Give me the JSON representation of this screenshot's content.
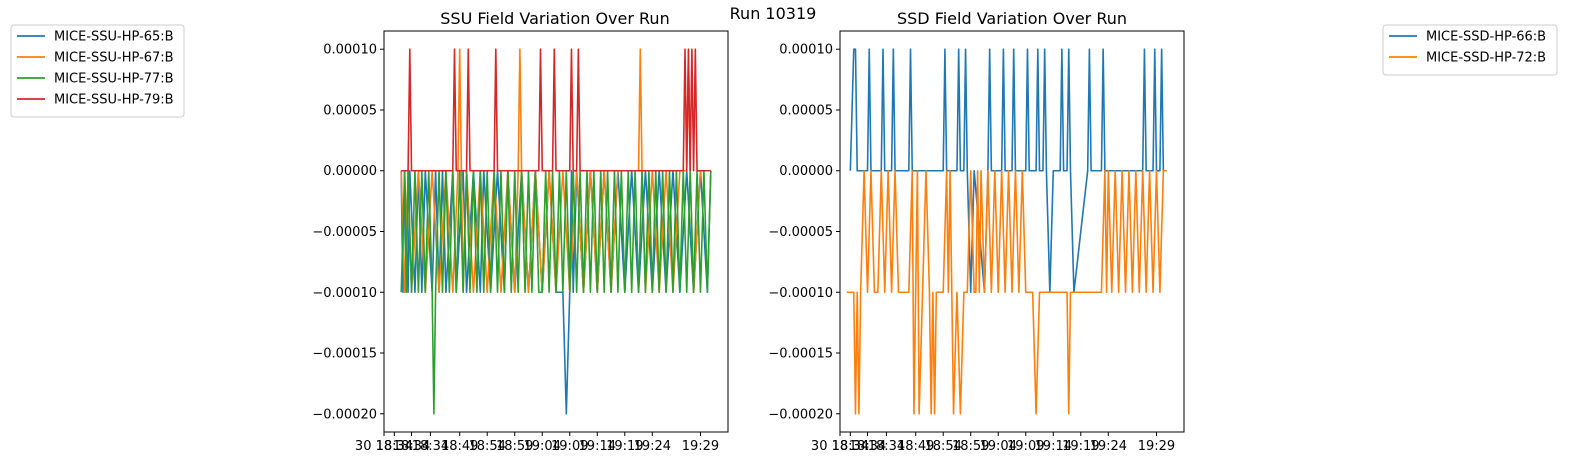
{
  "figure": {
    "suptitle": "Run 10319"
  },
  "chart_data": [
    {
      "type": "line",
      "title": "SSU Field Variation Over Run",
      "xlabel": "",
      "ylabel": "",
      "ylim": [
        -0.000215,
        0.000115
      ],
      "yticks": [
        0.0001,
        5e-05,
        0.0,
        -5e-05,
        -0.0001,
        -0.00015,
        -0.0002
      ],
      "ytick_labels": [
        "0.00010",
        "0.00005",
        "0.00000",
        "−0.00005",
        "−0.00010",
        "−0.00015",
        "−0.00020"
      ],
      "xlim": [
        0,
        1
      ],
      "xtick_labels": [
        "30 18:34",
        "18:34",
        "18:34",
        "18:34",
        "18:49",
        "18:54",
        "18:59",
        "19:04",
        "19:09",
        "19:14",
        "19:19",
        "19:24",
        "19:29"
      ],
      "xtick_positions": [
        0.0,
        0.03,
        0.08,
        0.135,
        0.22,
        0.3,
        0.38,
        0.46,
        0.54,
        0.62,
        0.7,
        0.78,
        0.92
      ],
      "legend": "outside-left",
      "series": [
        {
          "name": "MICE-SSU-HP-65:B",
          "color": "#1f77b4",
          "x": [
            0.05,
            0.055,
            0.06,
            0.07,
            0.075,
            0.09,
            0.1,
            0.11,
            0.12,
            0.14,
            0.15,
            0.16,
            0.17,
            0.18,
            0.2,
            0.21,
            0.23,
            0.24,
            0.26,
            0.28,
            0.29,
            0.31,
            0.33,
            0.35,
            0.36,
            0.38,
            0.4,
            0.42,
            0.44,
            0.46,
            0.48,
            0.5,
            0.52,
            0.53,
            0.54,
            0.545,
            0.55,
            0.56,
            0.58,
            0.6,
            0.62,
            0.64,
            0.66,
            0.68,
            0.7,
            0.72,
            0.74,
            0.76,
            0.78,
            0.8,
            0.82,
            0.84,
            0.86,
            0.88,
            0.9,
            0.92,
            0.94,
            0.95
          ],
          "y": [
            0,
            -0.0001,
            0,
            -0.0001,
            0,
            -0.0001,
            0,
            -0.0001,
            0,
            -0.0001,
            0,
            -0.0001,
            0,
            -0.0001,
            0,
            -0.0001,
            0,
            -0.0001,
            0,
            -0.0001,
            0,
            -0.0001,
            0,
            -0.0001,
            0,
            -0.0001,
            0,
            -0.0001,
            0,
            -0.0001,
            0,
            -0.0001,
            -0.0001,
            -0.0002,
            -0.0001,
            0,
            -0.0001,
            0,
            -0.0001,
            0,
            -0.0001,
            0,
            -0.0001,
            0,
            -0.0001,
            0,
            -0.0001,
            0,
            -0.0001,
            0,
            -0.0001,
            0,
            -0.0001,
            0,
            -0.0001,
            0,
            -0.0001,
            0
          ]
        },
        {
          "name": "MICE-SSU-HP-67:B",
          "color": "#ff7f0e",
          "x": [
            0.05,
            0.06,
            0.07,
            0.08,
            0.1,
            0.12,
            0.14,
            0.16,
            0.18,
            0.2,
            0.215,
            0.22,
            0.225,
            0.23,
            0.24,
            0.26,
            0.28,
            0.3,
            0.32,
            0.34,
            0.36,
            0.38,
            0.39,
            0.395,
            0.4,
            0.42,
            0.44,
            0.46,
            0.48,
            0.5,
            0.52,
            0.54,
            0.56,
            0.58,
            0.6,
            0.62,
            0.64,
            0.66,
            0.68,
            0.7,
            0.74,
            0.745,
            0.75,
            0.76,
            0.78,
            0.8,
            0.82,
            0.84,
            0.86,
            0.88,
            0.885,
            0.89,
            0.9,
            0.92,
            0.94
          ],
          "y": [
            0,
            -0.0001,
            0,
            -0.0001,
            0,
            -0.0001,
            0,
            -0.0001,
            0,
            -0.0001,
            0,
            0.0001,
            0,
            -0.0001,
            0,
            -0.0001,
            0,
            -0.0001,
            0,
            -0.0001,
            0,
            -0.0001,
            0,
            0.0001,
            0,
            -0.0001,
            0,
            -0.0001,
            0,
            -0.0001,
            0,
            -0.0001,
            0,
            -0.0001,
            0,
            -0.0001,
            0,
            -0.0001,
            0,
            0,
            0,
            0.0001,
            0,
            -0.0001,
            0,
            -0.0001,
            0,
            -0.0001,
            0,
            0,
            0.0001,
            0,
            -0.0001,
            0,
            0
          ]
        },
        {
          "name": "MICE-SSU-HP-77:B",
          "color": "#2ca02c",
          "x": [
            0.05,
            0.06,
            0.065,
            0.07,
            0.08,
            0.09,
            0.1,
            0.11,
            0.12,
            0.13,
            0.14,
            0.145,
            0.15,
            0.16,
            0.17,
            0.18,
            0.19,
            0.2,
            0.21,
            0.22,
            0.23,
            0.24,
            0.25,
            0.26,
            0.27,
            0.28,
            0.29,
            0.3,
            0.31,
            0.32,
            0.33,
            0.34,
            0.35,
            0.36,
            0.37,
            0.38,
            0.39,
            0.4,
            0.41,
            0.42,
            0.43,
            0.44,
            0.45,
            0.46,
            0.47,
            0.48,
            0.49,
            0.5,
            0.51,
            0.52,
            0.53,
            0.54,
            0.55,
            0.56,
            0.57,
            0.58,
            0.59,
            0.6,
            0.61,
            0.62,
            0.63,
            0.64,
            0.65,
            0.66,
            0.67,
            0.68,
            0.69,
            0.7,
            0.71,
            0.72,
            0.73,
            0.74,
            0.75,
            0.76,
            0.77,
            0.78,
            0.79,
            0.8,
            0.81,
            0.82,
            0.83,
            0.84,
            0.85,
            0.86,
            0.87,
            0.88,
            0.89,
            0.9,
            0.91,
            0.92,
            0.93,
            0.94,
            0.95
          ],
          "y": [
            -0.0001,
            0,
            -0.0001,
            0,
            -0.0001,
            0,
            -0.0001,
            0,
            -0.0001,
            0,
            -0.0001,
            -0.0002,
            -0.0001,
            0,
            -0.0001,
            0,
            -0.0001,
            0,
            -0.0001,
            0,
            -0.0001,
            0,
            -0.0001,
            0,
            -0.0001,
            0,
            -0.0001,
            0,
            -0.0001,
            0,
            -0.0001,
            0,
            -0.0001,
            0,
            -0.0001,
            0,
            -0.0001,
            0,
            -0.0001,
            0,
            -0.0001,
            0,
            -0.0001,
            -0.0001,
            0,
            -0.0001,
            0,
            -0.0001,
            0,
            -0.0001,
            0,
            -0.0001,
            0,
            -0.0001,
            0,
            -0.0001,
            0,
            -0.0001,
            0,
            -0.0001,
            0,
            -0.0001,
            0,
            -0.0001,
            0,
            -0.0001,
            0,
            -0.0001,
            0,
            -0.0001,
            0,
            -0.0001,
            0,
            -0.0001,
            0,
            -0.0001,
            0,
            -0.0001,
            0,
            -0.0001,
            0,
            -0.0001,
            0,
            -0.0001,
            0,
            -0.0001,
            0,
            -0.0001,
            0,
            -0.0001,
            0,
            -0.0001,
            0
          ]
        },
        {
          "name": "MICE-SSU-HP-79:B",
          "color": "#d62728",
          "x": [
            0.05,
            0.07,
            0.075,
            0.08,
            0.2,
            0.205,
            0.21,
            0.24,
            0.245,
            0.25,
            0.32,
            0.325,
            0.33,
            0.45,
            0.455,
            0.46,
            0.49,
            0.495,
            0.5,
            0.54,
            0.545,
            0.55,
            0.56,
            0.565,
            0.57,
            0.87,
            0.875,
            0.88,
            0.885,
            0.89,
            0.895,
            0.9,
            0.905,
            0.91,
            0.95
          ],
          "y": [
            0,
            0,
            0.0001,
            0,
            0,
            0.0001,
            0,
            0,
            0.0001,
            0,
            0,
            0.0001,
            0,
            0,
            0.0001,
            0,
            0,
            0.0001,
            0,
            0,
            0.0001,
            0,
            0,
            0.0001,
            0,
            0,
            0.0001,
            0,
            0.0001,
            0,
            0.0001,
            0,
            0.0001,
            0,
            0
          ]
        }
      ]
    },
    {
      "type": "line",
      "title": "SSD Field Variation Over Run",
      "xlabel": "",
      "ylabel": "",
      "ylim": [
        -0.000215,
        0.000115
      ],
      "yticks": [
        0.0001,
        5e-05,
        0.0,
        -5e-05,
        -0.0001,
        -0.00015,
        -0.0002
      ],
      "ytick_labels": [
        "0.00010",
        "0.00005",
        "0.00000",
        "−0.00005",
        "−0.00010",
        "−0.00015",
        "−0.00020"
      ],
      "xlim": [
        0,
        1
      ],
      "xtick_labels": [
        "30 18:34",
        "18:34",
        "18:34",
        "18:34",
        "18:49",
        "18:54",
        "18:59",
        "19:04",
        "19:09",
        "19:14",
        "19:19",
        "19:24",
        "19:29"
      ],
      "xtick_positions": [
        0.0,
        0.03,
        0.08,
        0.135,
        0.22,
        0.3,
        0.38,
        0.46,
        0.54,
        0.62,
        0.7,
        0.78,
        0.92
      ],
      "legend": "outside-right",
      "series": [
        {
          "name": "MICE-SSD-HP-66:B",
          "color": "#1f77b4",
          "x": [
            0.03,
            0.04,
            0.045,
            0.05,
            0.08,
            0.085,
            0.09,
            0.12,
            0.125,
            0.13,
            0.15,
            0.155,
            0.16,
            0.2,
            0.205,
            0.21,
            0.3,
            0.305,
            0.31,
            0.34,
            0.345,
            0.35,
            0.36,
            0.365,
            0.37,
            0.38,
            0.39,
            0.42,
            0.43,
            0.435,
            0.44,
            0.47,
            0.475,
            0.48,
            0.5,
            0.505,
            0.51,
            0.54,
            0.545,
            0.55,
            0.57,
            0.575,
            0.58,
            0.59,
            0.595,
            0.6,
            0.61,
            0.62,
            0.64,
            0.645,
            0.65,
            0.66,
            0.665,
            0.67,
            0.68,
            0.72,
            0.725,
            0.73,
            0.76,
            0.765,
            0.77,
            0.88,
            0.885,
            0.89,
            0.91,
            0.915,
            0.92,
            0.93,
            0.935,
            0.94,
            0.95
          ],
          "y": [
            0,
            0.0001,
            0.0001,
            0,
            0,
            0.0001,
            0,
            0,
            0.0001,
            0,
            0,
            0.0001,
            0,
            0,
            0.0001,
            0,
            0,
            0.0001,
            0,
            0,
            0.0001,
            0,
            0,
            0.0001,
            0,
            -0.0001,
            0,
            -0.0001,
            0,
            0.0001,
            0,
            0,
            0.0001,
            0,
            0,
            0.0001,
            0,
            0,
            0.0001,
            0,
            0,
            0.0001,
            0,
            0,
            0.0001,
            0,
            -0.0001,
            0,
            0,
            0.0001,
            0,
            0,
            0.0001,
            0,
            -0.0001,
            0,
            0.0001,
            0,
            0,
            0.0001,
            0,
            0,
            0.0001,
            0,
            0,
            0.0001,
            0,
            0,
            0.0001,
            0,
            0
          ]
        },
        {
          "name": "MICE-SSD-HP-72:B",
          "color": "#ff7f0e",
          "x": [
            0.02,
            0.04,
            0.045,
            0.05,
            0.055,
            0.06,
            0.07,
            0.08,
            0.09,
            0.1,
            0.11,
            0.12,
            0.13,
            0.14,
            0.15,
            0.16,
            0.17,
            0.2,
            0.21,
            0.215,
            0.22,
            0.225,
            0.23,
            0.24,
            0.25,
            0.26,
            0.265,
            0.27,
            0.275,
            0.28,
            0.29,
            0.3,
            0.31,
            0.315,
            0.32,
            0.33,
            0.34,
            0.35,
            0.36,
            0.37,
            0.38,
            0.39,
            0.395,
            0.4,
            0.405,
            0.41,
            0.42,
            0.43,
            0.44,
            0.45,
            0.46,
            0.47,
            0.48,
            0.49,
            0.5,
            0.51,
            0.52,
            0.53,
            0.54,
            0.55,
            0.56,
            0.57,
            0.58,
            0.59,
            0.6,
            0.61,
            0.62,
            0.63,
            0.64,
            0.65,
            0.66,
            0.665,
            0.67,
            0.68,
            0.69,
            0.7,
            0.71,
            0.72,
            0.73,
            0.74,
            0.75,
            0.76,
            0.77,
            0.775,
            0.78,
            0.79,
            0.8,
            0.81,
            0.82,
            0.83,
            0.84,
            0.85,
            0.86,
            0.87,
            0.88,
            0.89,
            0.9,
            0.91,
            0.92,
            0.93,
            0.94,
            0.95
          ],
          "y": [
            -0.0001,
            -0.0001,
            -0.0002,
            -0.0001,
            -0.0002,
            -0.0001,
            0,
            -0.0001,
            0,
            -0.0001,
            -0.0001,
            0,
            -0.0001,
            0,
            -0.0001,
            0,
            -0.0001,
            -0.0001,
            0,
            -0.0002,
            -0.0001,
            0,
            -0.0002,
            -0.0001,
            0,
            -0.0001,
            -0.0002,
            -0.0001,
            -0.0002,
            -0.0001,
            -0.0001,
            -0.0001,
            0,
            -0.0001,
            0,
            -0.0002,
            -0.0001,
            -0.0002,
            -0.0001,
            -0.0001,
            0,
            -0.0001,
            -0.0001,
            0,
            -0.0001,
            0,
            -0.0001,
            0,
            -0.0001,
            0,
            -0.0001,
            0,
            -0.0001,
            0,
            -0.0001,
            0,
            -0.0001,
            0,
            -0.0001,
            -0.0001,
            -0.0001,
            -0.0002,
            -0.0001,
            -0.0001,
            -0.0001,
            -0.0001,
            -0.0001,
            -0.0001,
            -0.0001,
            -0.0001,
            -0.0001,
            -0.0002,
            -0.0001,
            -0.0001,
            -0.0001,
            -0.0001,
            -0.0001,
            -0.0001,
            -0.0001,
            -0.0001,
            -0.0001,
            -0.0001,
            0,
            -0.0001,
            0,
            -0.0001,
            0,
            -0.0001,
            0,
            -0.0001,
            0,
            -0.0001,
            0,
            -0.0001,
            0,
            -0.0001,
            0,
            -0.0001,
            0,
            -0.0001,
            0,
            0
          ]
        }
      ]
    }
  ]
}
